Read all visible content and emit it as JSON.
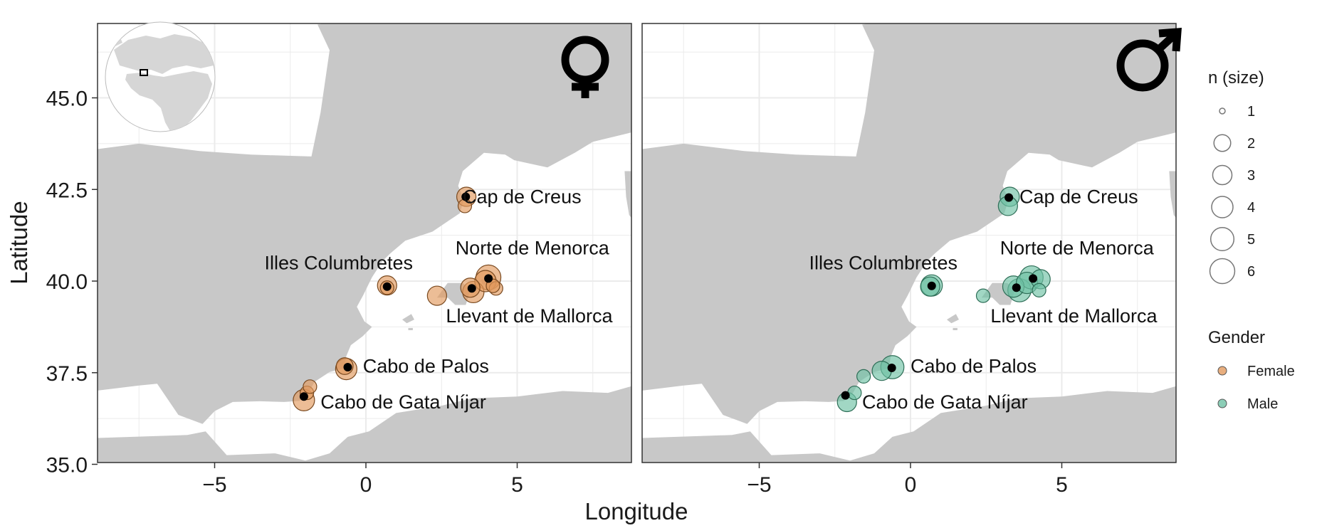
{
  "map": {
    "xlabel": "Longitude",
    "ylabel": "Latitude",
    "x_ticks": [
      -5,
      0,
      5
    ],
    "y_ticks": [
      35.0,
      37.5,
      40.0,
      42.5,
      45.0
    ],
    "x_tick_labels": [
      "−5",
      "0",
      "5"
    ],
    "y_tick_labels": [
      "35.0",
      "37.5",
      "40.0",
      "42.5",
      "45.0"
    ],
    "xlim": [
      -8.8,
      8.8
    ],
    "ylim": [
      34.9,
      47.0
    ],
    "colors": {
      "land": "#c8c8c8",
      "sea": "#ffffff",
      "grid": "#ebebeb",
      "female": "#e29a5e",
      "male": "#6fc2a5"
    }
  },
  "panels": [
    {
      "gender": "Female",
      "symbol": "♀",
      "sites": [
        {
          "label": "Cap de Creus",
          "lon": 3.2,
          "lat": 42.3,
          "anchor": "start"
        },
        {
          "label": "Norte de Menorca",
          "lon": 5.5,
          "lat": 40.9,
          "anchor": "middle"
        },
        {
          "label": "Illes Columbretes",
          "lon": -0.9,
          "lat": 40.5,
          "anchor": "middle"
        },
        {
          "label": "Llevant de Mallorca",
          "lon": 5.4,
          "lat": 39.05,
          "anchor": "middle"
        },
        {
          "label": "Cabo de Palos",
          "lon": -0.1,
          "lat": 37.68,
          "anchor": "start"
        },
        {
          "label": "Cabo de Gata Níjar",
          "lon": -1.5,
          "lat": 36.7,
          "anchor": "start"
        }
      ],
      "points": [
        {
          "lon": 3.32,
          "lat": 42.3,
          "n": 3
        },
        {
          "lon": 3.27,
          "lat": 42.05,
          "n": 1
        },
        {
          "lon": 0.7,
          "lat": 39.88,
          "n": 3
        },
        {
          "lon": 0.7,
          "lat": 39.82,
          "n": 1
        },
        {
          "lon": 2.35,
          "lat": 39.6,
          "n": 3
        },
        {
          "lon": 3.45,
          "lat": 39.82,
          "n": 3
        },
        {
          "lon": 3.55,
          "lat": 39.7,
          "n": 4
        },
        {
          "lon": 4.05,
          "lat": 40.1,
          "n": 6
        },
        {
          "lon": 3.95,
          "lat": 40.0,
          "n": 4
        },
        {
          "lon": 4.3,
          "lat": 39.8,
          "n": 1
        },
        {
          "lon": 4.2,
          "lat": 39.87,
          "n": 1
        },
        {
          "lon": -0.65,
          "lat": 37.6,
          "n": 4
        },
        {
          "lon": -0.7,
          "lat": 37.68,
          "n": 2
        },
        {
          "lon": -2.05,
          "lat": 36.75,
          "n": 4
        },
        {
          "lon": -1.95,
          "lat": 36.95,
          "n": 1
        },
        {
          "lon": -1.85,
          "lat": 37.12,
          "n": 1
        }
      ],
      "centroids": [
        {
          "lon": 3.3,
          "lat": 42.3
        },
        {
          "lon": 0.7,
          "lat": 39.85
        },
        {
          "lon": 3.5,
          "lat": 39.8
        },
        {
          "lon": 4.05,
          "lat": 40.07
        },
        {
          "lon": -0.6,
          "lat": 37.65
        },
        {
          "lon": -2.05,
          "lat": 36.85
        }
      ]
    },
    {
      "gender": "Male",
      "symbol": "♂",
      "sites": [
        {
          "label": "Cap de Creus",
          "lon": 3.6,
          "lat": 42.3,
          "anchor": "start"
        },
        {
          "label": "Norte de Menorca",
          "lon": 5.5,
          "lat": 40.9,
          "anchor": "middle"
        },
        {
          "label": "Illes Columbretes",
          "lon": -0.9,
          "lat": 40.5,
          "anchor": "middle"
        },
        {
          "label": "Llevant de Mallorca",
          "lon": 5.4,
          "lat": 39.05,
          "anchor": "middle"
        },
        {
          "label": "Cabo de Palos",
          "lon": 0.0,
          "lat": 37.68,
          "anchor": "start"
        },
        {
          "label": "Cabo de Gata Níjar",
          "lon": -1.6,
          "lat": 36.7,
          "anchor": "start"
        }
      ],
      "points": [
        {
          "lon": 3.28,
          "lat": 42.3,
          "n": 3
        },
        {
          "lon": 3.22,
          "lat": 42.05,
          "n": 3
        },
        {
          "lon": 0.7,
          "lat": 39.88,
          "n": 4
        },
        {
          "lon": 0.65,
          "lat": 39.85,
          "n": 3
        },
        {
          "lon": 2.4,
          "lat": 39.6,
          "n": 1
        },
        {
          "lon": 3.4,
          "lat": 39.85,
          "n": 4
        },
        {
          "lon": 3.6,
          "lat": 39.75,
          "n": 5
        },
        {
          "lon": 4.0,
          "lat": 40.1,
          "n": 5
        },
        {
          "lon": 3.85,
          "lat": 39.95,
          "n": 4
        },
        {
          "lon": 4.3,
          "lat": 40.05,
          "n": 3
        },
        {
          "lon": 4.25,
          "lat": 39.75,
          "n": 1
        },
        {
          "lon": -0.6,
          "lat": 37.65,
          "n": 5
        },
        {
          "lon": -0.95,
          "lat": 37.55,
          "n": 3
        },
        {
          "lon": -1.55,
          "lat": 37.4,
          "n": 1
        },
        {
          "lon": -2.1,
          "lat": 36.7,
          "n": 3
        },
        {
          "lon": -1.85,
          "lat": 36.95,
          "n": 1
        }
      ],
      "centroids": [
        {
          "lon": 3.25,
          "lat": 42.28
        },
        {
          "lon": 0.7,
          "lat": 39.87
        },
        {
          "lon": 3.5,
          "lat": 39.82
        },
        {
          "lon": 4.05,
          "lat": 40.07
        },
        {
          "lon": -0.62,
          "lat": 37.63
        },
        {
          "lon": -2.15,
          "lat": 36.88
        }
      ]
    }
  ],
  "legend": {
    "size_title": "n (size)",
    "size_values": [
      "1",
      "2",
      "3",
      "4",
      "5",
      "6"
    ],
    "gender_title": "Gender",
    "gender_values": [
      {
        "label": "Female",
        "color": "#e29a5e"
      },
      {
        "label": "Male",
        "color": "#6fc2a5"
      }
    ]
  }
}
